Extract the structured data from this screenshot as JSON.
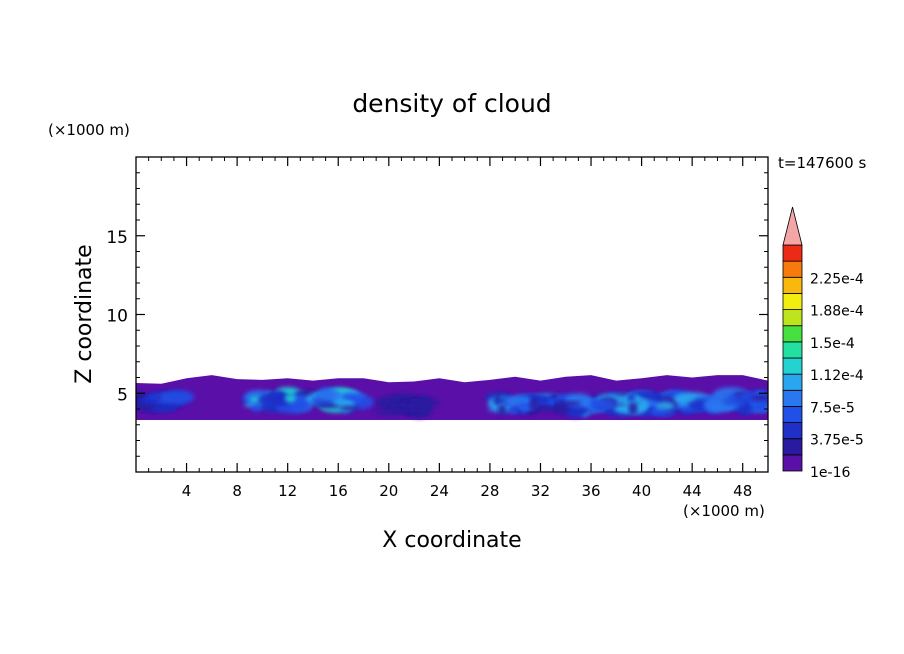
{
  "chart_data": {
    "type": "heatmap",
    "title": "density of cloud",
    "xlabel": "X coordinate",
    "ylabel": "Z coordinate",
    "x_unit": "(×1000 m)",
    "y_unit": "(×1000 m)",
    "time_label": "t=147600 s",
    "xlim": [
      0,
      50
    ],
    "ylim": [
      0,
      20
    ],
    "x_ticks": [
      4,
      8,
      12,
      16,
      20,
      24,
      28,
      32,
      36,
      40,
      44,
      48
    ],
    "y_ticks": [
      5,
      10,
      15
    ],
    "colorbar": {
      "levels": 14,
      "labels": [
        {
          "level": 0,
          "text": "1e-16"
        },
        {
          "level": 2,
          "text": "3.75e-5"
        },
        {
          "level": 4,
          "text": "7.5e-5"
        },
        {
          "level": 6,
          "text": "1.12e-4"
        },
        {
          "level": 8,
          "text": "1.5e-4"
        },
        {
          "level": 10,
          "text": "1.88e-4"
        },
        {
          "level": 12,
          "text": "2.25e-4"
        }
      ],
      "colors": [
        "#5a10a8",
        "#2a1aa0",
        "#1f2fc8",
        "#2050e6",
        "#2a78f0",
        "#2aa6ee",
        "#24d2d2",
        "#24e0a0",
        "#46e040",
        "#bde41c",
        "#f2ee10",
        "#f8b80c",
        "#f67a0c",
        "#ec2a16"
      ],
      "extend_color": "#f4a6a6"
    },
    "cloud_layer": {
      "z_bottom": 3.3,
      "z_top_profile": [
        [
          0,
          5.5
        ],
        [
          2,
          5.7
        ],
        [
          4,
          5.9
        ],
        [
          6,
          6.0
        ],
        [
          8,
          6.0
        ],
        [
          10,
          5.8
        ],
        [
          12,
          5.8
        ],
        [
          14,
          5.9
        ],
        [
          16,
          5.9
        ],
        [
          18,
          5.8
        ],
        [
          20,
          5.8
        ],
        [
          22,
          5.7
        ],
        [
          24,
          5.8
        ],
        [
          26,
          5.8
        ],
        [
          28,
          5.8
        ],
        [
          30,
          5.9
        ],
        [
          32,
          5.9
        ],
        [
          34,
          6.0
        ],
        [
          36,
          6.0
        ],
        [
          38,
          5.9
        ],
        [
          40,
          5.9
        ],
        [
          42,
          6.0
        ],
        [
          44,
          6.1
        ],
        [
          46,
          6.1
        ],
        [
          48,
          6.0
        ],
        [
          50,
          5.9
        ]
      ],
      "max_level": 7
    }
  }
}
